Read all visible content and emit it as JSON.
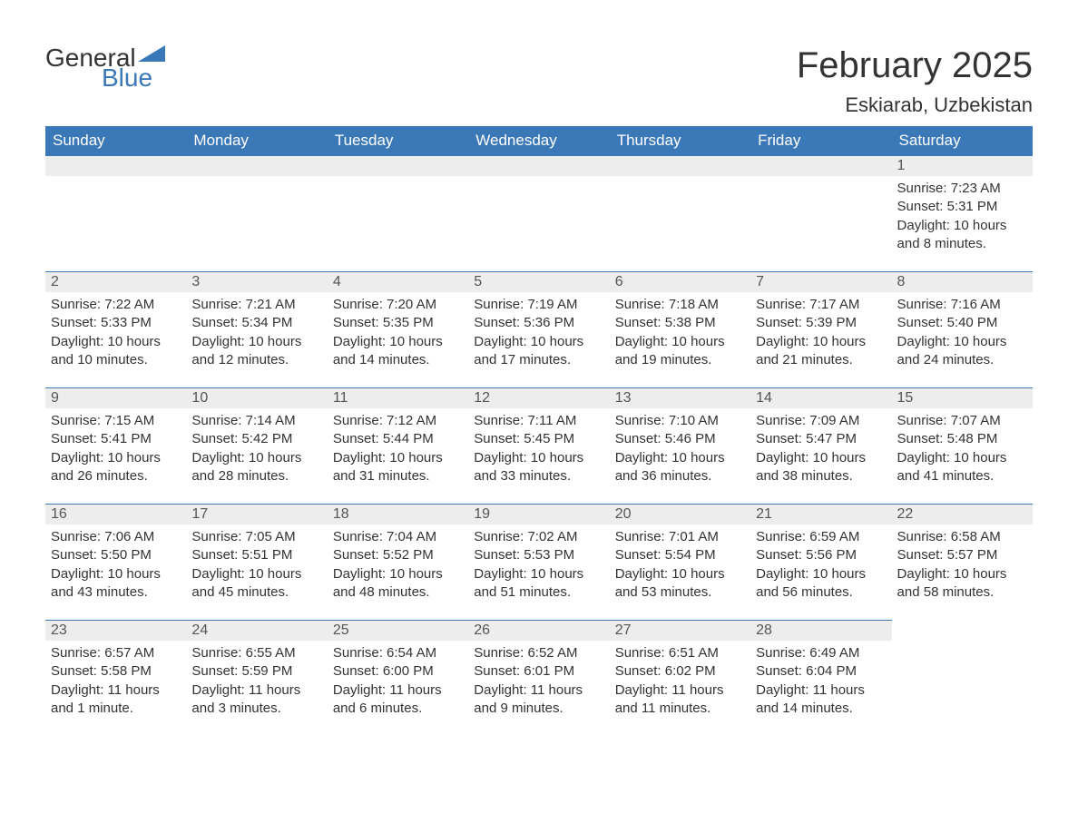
{
  "logo": {
    "text1": "General",
    "text2": "Blue",
    "accent_color": "#3b78b8"
  },
  "month_title": "February 2025",
  "location": "Eskiarab, Uzbekistan",
  "colors": {
    "header_bg": "#3b78b8",
    "header_text": "#ffffff",
    "daynum_bg": "#ededed",
    "border": "#3b78b8",
    "body_text": "#333333",
    "background": "#ffffff"
  },
  "fonts": {
    "title_size": 40,
    "location_size": 22,
    "header_size": 17,
    "cell_size": 15
  },
  "day_headers": [
    "Sunday",
    "Monday",
    "Tuesday",
    "Wednesday",
    "Thursday",
    "Friday",
    "Saturday"
  ],
  "weeks": [
    [
      null,
      null,
      null,
      null,
      null,
      null,
      {
        "n": "1",
        "sunrise": "7:23 AM",
        "sunset": "5:31 PM",
        "daylight": "10 hours and 8 minutes."
      }
    ],
    [
      {
        "n": "2",
        "sunrise": "7:22 AM",
        "sunset": "5:33 PM",
        "daylight": "10 hours and 10 minutes."
      },
      {
        "n": "3",
        "sunrise": "7:21 AM",
        "sunset": "5:34 PM",
        "daylight": "10 hours and 12 minutes."
      },
      {
        "n": "4",
        "sunrise": "7:20 AM",
        "sunset": "5:35 PM",
        "daylight": "10 hours and 14 minutes."
      },
      {
        "n": "5",
        "sunrise": "7:19 AM",
        "sunset": "5:36 PM",
        "daylight": "10 hours and 17 minutes."
      },
      {
        "n": "6",
        "sunrise": "7:18 AM",
        "sunset": "5:38 PM",
        "daylight": "10 hours and 19 minutes."
      },
      {
        "n": "7",
        "sunrise": "7:17 AM",
        "sunset": "5:39 PM",
        "daylight": "10 hours and 21 minutes."
      },
      {
        "n": "8",
        "sunrise": "7:16 AM",
        "sunset": "5:40 PM",
        "daylight": "10 hours and 24 minutes."
      }
    ],
    [
      {
        "n": "9",
        "sunrise": "7:15 AM",
        "sunset": "5:41 PM",
        "daylight": "10 hours and 26 minutes."
      },
      {
        "n": "10",
        "sunrise": "7:14 AM",
        "sunset": "5:42 PM",
        "daylight": "10 hours and 28 minutes."
      },
      {
        "n": "11",
        "sunrise": "7:12 AM",
        "sunset": "5:44 PM",
        "daylight": "10 hours and 31 minutes."
      },
      {
        "n": "12",
        "sunrise": "7:11 AM",
        "sunset": "5:45 PM",
        "daylight": "10 hours and 33 minutes."
      },
      {
        "n": "13",
        "sunrise": "7:10 AM",
        "sunset": "5:46 PM",
        "daylight": "10 hours and 36 minutes."
      },
      {
        "n": "14",
        "sunrise": "7:09 AM",
        "sunset": "5:47 PM",
        "daylight": "10 hours and 38 minutes."
      },
      {
        "n": "15",
        "sunrise": "7:07 AM",
        "sunset": "5:48 PM",
        "daylight": "10 hours and 41 minutes."
      }
    ],
    [
      {
        "n": "16",
        "sunrise": "7:06 AM",
        "sunset": "5:50 PM",
        "daylight": "10 hours and 43 minutes."
      },
      {
        "n": "17",
        "sunrise": "7:05 AM",
        "sunset": "5:51 PM",
        "daylight": "10 hours and 45 minutes."
      },
      {
        "n": "18",
        "sunrise": "7:04 AM",
        "sunset": "5:52 PM",
        "daylight": "10 hours and 48 minutes."
      },
      {
        "n": "19",
        "sunrise": "7:02 AM",
        "sunset": "5:53 PM",
        "daylight": "10 hours and 51 minutes."
      },
      {
        "n": "20",
        "sunrise": "7:01 AM",
        "sunset": "5:54 PM",
        "daylight": "10 hours and 53 minutes."
      },
      {
        "n": "21",
        "sunrise": "6:59 AM",
        "sunset": "5:56 PM",
        "daylight": "10 hours and 56 minutes."
      },
      {
        "n": "22",
        "sunrise": "6:58 AM",
        "sunset": "5:57 PM",
        "daylight": "10 hours and 58 minutes."
      }
    ],
    [
      {
        "n": "23",
        "sunrise": "6:57 AM",
        "sunset": "5:58 PM",
        "daylight": "11 hours and 1 minute."
      },
      {
        "n": "24",
        "sunrise": "6:55 AM",
        "sunset": "5:59 PM",
        "daylight": "11 hours and 3 minutes."
      },
      {
        "n": "25",
        "sunrise": "6:54 AM",
        "sunset": "6:00 PM",
        "daylight": "11 hours and 6 minutes."
      },
      {
        "n": "26",
        "sunrise": "6:52 AM",
        "sunset": "6:01 PM",
        "daylight": "11 hours and 9 minutes."
      },
      {
        "n": "27",
        "sunrise": "6:51 AM",
        "sunset": "6:02 PM",
        "daylight": "11 hours and 11 minutes."
      },
      {
        "n": "28",
        "sunrise": "6:49 AM",
        "sunset": "6:04 PM",
        "daylight": "11 hours and 14 minutes."
      },
      null
    ]
  ],
  "labels": {
    "sunrise": "Sunrise: ",
    "sunset": "Sunset: ",
    "daylight": "Daylight: "
  }
}
